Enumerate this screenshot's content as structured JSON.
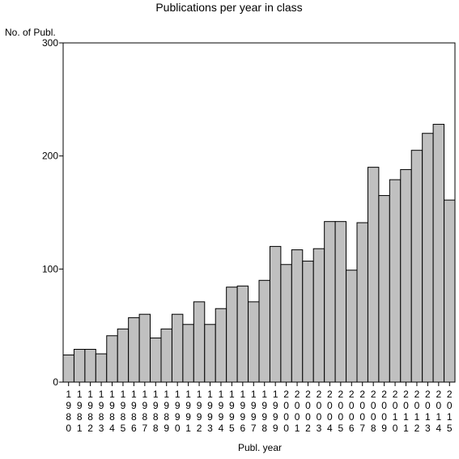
{
  "chart_data": {
    "type": "bar",
    "title": "Publications per year in class",
    "ylabel": "No. of Publ.",
    "xlabel": "Publ. year",
    "ylim": [
      0,
      300
    ],
    "yticks": [
      0,
      100,
      200,
      300
    ],
    "grid": false,
    "bar_color": "#c0c0c0",
    "categories": [
      "1980",
      "1981",
      "1982",
      "1983",
      "1984",
      "1985",
      "1986",
      "1987",
      "1988",
      "1989",
      "1990",
      "1991",
      "1992",
      "1993",
      "1994",
      "1995",
      "1996",
      "1997",
      "1998",
      "1999",
      "2000",
      "2001",
      "2002",
      "2003",
      "2004",
      "2005",
      "2006",
      "2007",
      "2008",
      "2009",
      "2010",
      "2011",
      "2012",
      "2013",
      "2014",
      "2015"
    ],
    "values": [
      24,
      29,
      29,
      25,
      41,
      47,
      57,
      60,
      39,
      47,
      60,
      51,
      71,
      51,
      65,
      84,
      85,
      71,
      90,
      120,
      104,
      117,
      107,
      118,
      142,
      142,
      99,
      141,
      190,
      165,
      179,
      188,
      205,
      220,
      228,
      161
    ]
  }
}
